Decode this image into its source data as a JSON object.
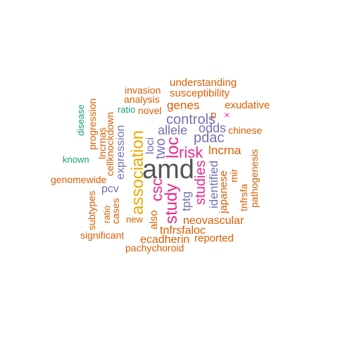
{
  "colors": {
    "orange": "#D95F02",
    "green": "#1B9E77",
    "purple": "#7570B3",
    "magenta": "#E7298A",
    "gold": "#E6AB02",
    "gray": "#555555"
  },
  "words": {
    "amd": "amd",
    "association": "association",
    "study": "study",
    "risk": "risk",
    "loc": "loc",
    "csc": "csc",
    "studies": "studies",
    "controls": "controls",
    "two": "two",
    "loci": "loci",
    "allele": "allele",
    "pdac": "pdac",
    "odds": "odds",
    "lncrna": "lncrna",
    "tptg": "tptg",
    "identified": "identified",
    "expression": "expression",
    "pcv": "pcv",
    "genes": "genes",
    "understanding": "understanding",
    "susceptibility": "susceptibility",
    "exudative": "exudative",
    "invasion": "invasion",
    "analysis": "analysis",
    "ratio_top": "ratio",
    "novel": "novel",
    "p": "p",
    "x": "×",
    "chinese": "chinese",
    "disease": "disease",
    "progression": "progression",
    "lncrnas": "lncrnas",
    "cellknockdown": "cellknockdown",
    "known": "known",
    "genomewide": "genomewide",
    "pathogenesis": "pathogenesis",
    "tnfrsfa": "tnfrsfa",
    "mir": "mir",
    "japanese": "japanese",
    "subtypes": "subtypes",
    "ratio_bottom": "ratio",
    "cases": "cases",
    "new": "new",
    "also": "also",
    "neovascular": "neovascular",
    "tnfrsfaloc": "tnfrsfaloc",
    "significant": "significant",
    "ecadherin": "ecadherin",
    "reported": "reported",
    "pachychoroid": "pachychoroid"
  }
}
